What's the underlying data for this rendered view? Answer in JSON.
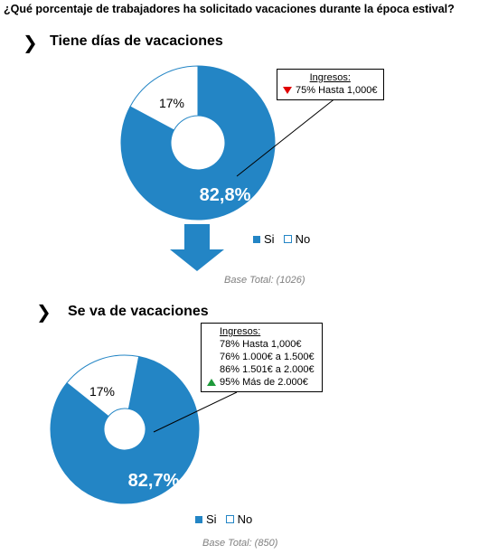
{
  "question": "¿Qué porcentaje de trabajadores ha solicitado vacaciones durante la época estival?",
  "colors": {
    "si": "#2385c5",
    "no": "#ffffff",
    "down": "#e00000",
    "up": "#1e9a3a"
  },
  "chart_data": [
    {
      "type": "pie",
      "title": "Tiene días de vacaciones",
      "categories": [
        "Si",
        "No"
      ],
      "values": [
        82.8,
        17.2
      ],
      "labels": [
        "82,8%",
        "17%"
      ],
      "legend": [
        "Si",
        "No"
      ],
      "base": "Base Total: (1026)",
      "callout": {
        "title": "Ingresos:",
        "lines": [
          "75% Hasta 1,000€"
        ]
      }
    },
    {
      "type": "pie",
      "title": "Se va de vacaciones",
      "categories": [
        "Si",
        "No"
      ],
      "values": [
        82.7,
        17.3
      ],
      "labels": [
        "82,7%",
        "17%"
      ],
      "legend": [
        "Si",
        "No"
      ],
      "base": "Base Total: (850)",
      "callout": {
        "title": "Ingresos:",
        "lines": [
          "78% Hasta 1,000€",
          "76% 1.000€ a 1.500€",
          "86% 1.501€ a 2.000€",
          "95% Más de 2.000€"
        ]
      }
    }
  ]
}
